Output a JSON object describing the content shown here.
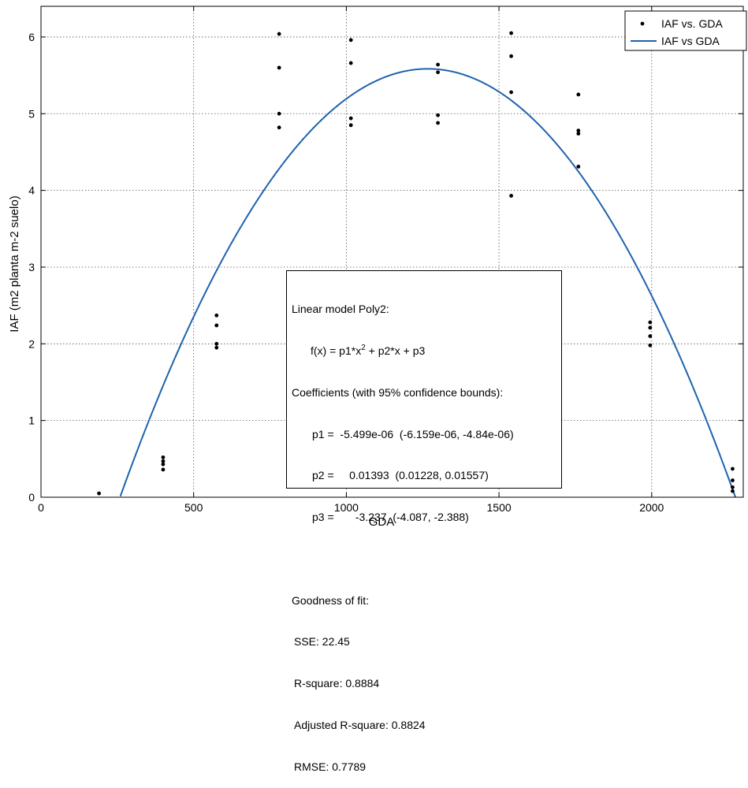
{
  "chart_data": {
    "type": "scatter",
    "xlabel": "GDA",
    "ylabel": "IAF (m2 planta m-2 suelo)",
    "xlim": [
      0,
      2300
    ],
    "ylim": [
      0,
      6.4
    ],
    "x_ticks": [
      "0",
      "500",
      "1000",
      "1500",
      "2000"
    ],
    "y_ticks": [
      "0",
      "1",
      "2",
      "3",
      "4",
      "5",
      "6"
    ],
    "grid": true,
    "legend_position": "top-right",
    "series": [
      {
        "name": "IAF vs. GDA",
        "mode": "markers",
        "color": "#000000",
        "points": [
          {
            "x": 190,
            "y": 0.05
          },
          {
            "x": 400,
            "y": 0.52
          },
          {
            "x": 400,
            "y": 0.47
          },
          {
            "x": 400,
            "y": 0.43
          },
          {
            "x": 400,
            "y": 0.36
          },
          {
            "x": 575,
            "y": 2.37
          },
          {
            "x": 575,
            "y": 2.24
          },
          {
            "x": 575,
            "y": 2.0
          },
          {
            "x": 575,
            "y": 1.95
          },
          {
            "x": 780,
            "y": 6.04
          },
          {
            "x": 780,
            "y": 5.6
          },
          {
            "x": 780,
            "y": 5.0
          },
          {
            "x": 780,
            "y": 4.82
          },
          {
            "x": 1015,
            "y": 5.96
          },
          {
            "x": 1015,
            "y": 5.66
          },
          {
            "x": 1015,
            "y": 4.94
          },
          {
            "x": 1015,
            "y": 4.85
          },
          {
            "x": 1300,
            "y": 5.64
          },
          {
            "x": 1300,
            "y": 5.54
          },
          {
            "x": 1300,
            "y": 4.98
          },
          {
            "x": 1300,
            "y": 4.88
          },
          {
            "x": 1540,
            "y": 6.05
          },
          {
            "x": 1540,
            "y": 5.75
          },
          {
            "x": 1540,
            "y": 5.28
          },
          {
            "x": 1540,
            "y": 3.93
          },
          {
            "x": 1760,
            "y": 5.25
          },
          {
            "x": 1760,
            "y": 4.78
          },
          {
            "x": 1760,
            "y": 4.74
          },
          {
            "x": 1760,
            "y": 4.31
          },
          {
            "x": 1995,
            "y": 2.28
          },
          {
            "x": 1995,
            "y": 2.21
          },
          {
            "x": 1995,
            "y": 2.1
          },
          {
            "x": 1995,
            "y": 1.98
          },
          {
            "x": 2265,
            "y": 0.37
          },
          {
            "x": 2265,
            "y": 0.22
          },
          {
            "x": 2265,
            "y": 0.13
          },
          {
            "x": 2265,
            "y": 0.08
          }
        ]
      },
      {
        "name": "IAF vs GDA",
        "mode": "line",
        "color": "#1f63ad",
        "model": {
          "p1": -5.499e-06,
          "p2": 0.01393,
          "p3": -3.237
        }
      }
    ]
  },
  "fit_box": {
    "title": "Linear model Poly2:",
    "formula_prefix": "f(x) = p1*x",
    "formula_sup": "2",
    "formula_suffix": " + p2*x + p3",
    "coef_title": "Coefficients (with 95% confidence bounds):",
    "p1": "p1 =  -5.499e-06  (-6.159e-06, -4.84e-06)",
    "p2": "p2 =     0.01393  (0.01228, 0.01557)",
    "p3": "p3 =       -3.237  (-4.087, -2.388)",
    "gof_title": "Goodness of fit:",
    "sse": "SSE: 22.45",
    "rsquare": "R-square: 0.8884",
    "adj_rsquare": "Adjusted R-square: 0.8824",
    "rmse": "RMSE: 0.7789"
  }
}
